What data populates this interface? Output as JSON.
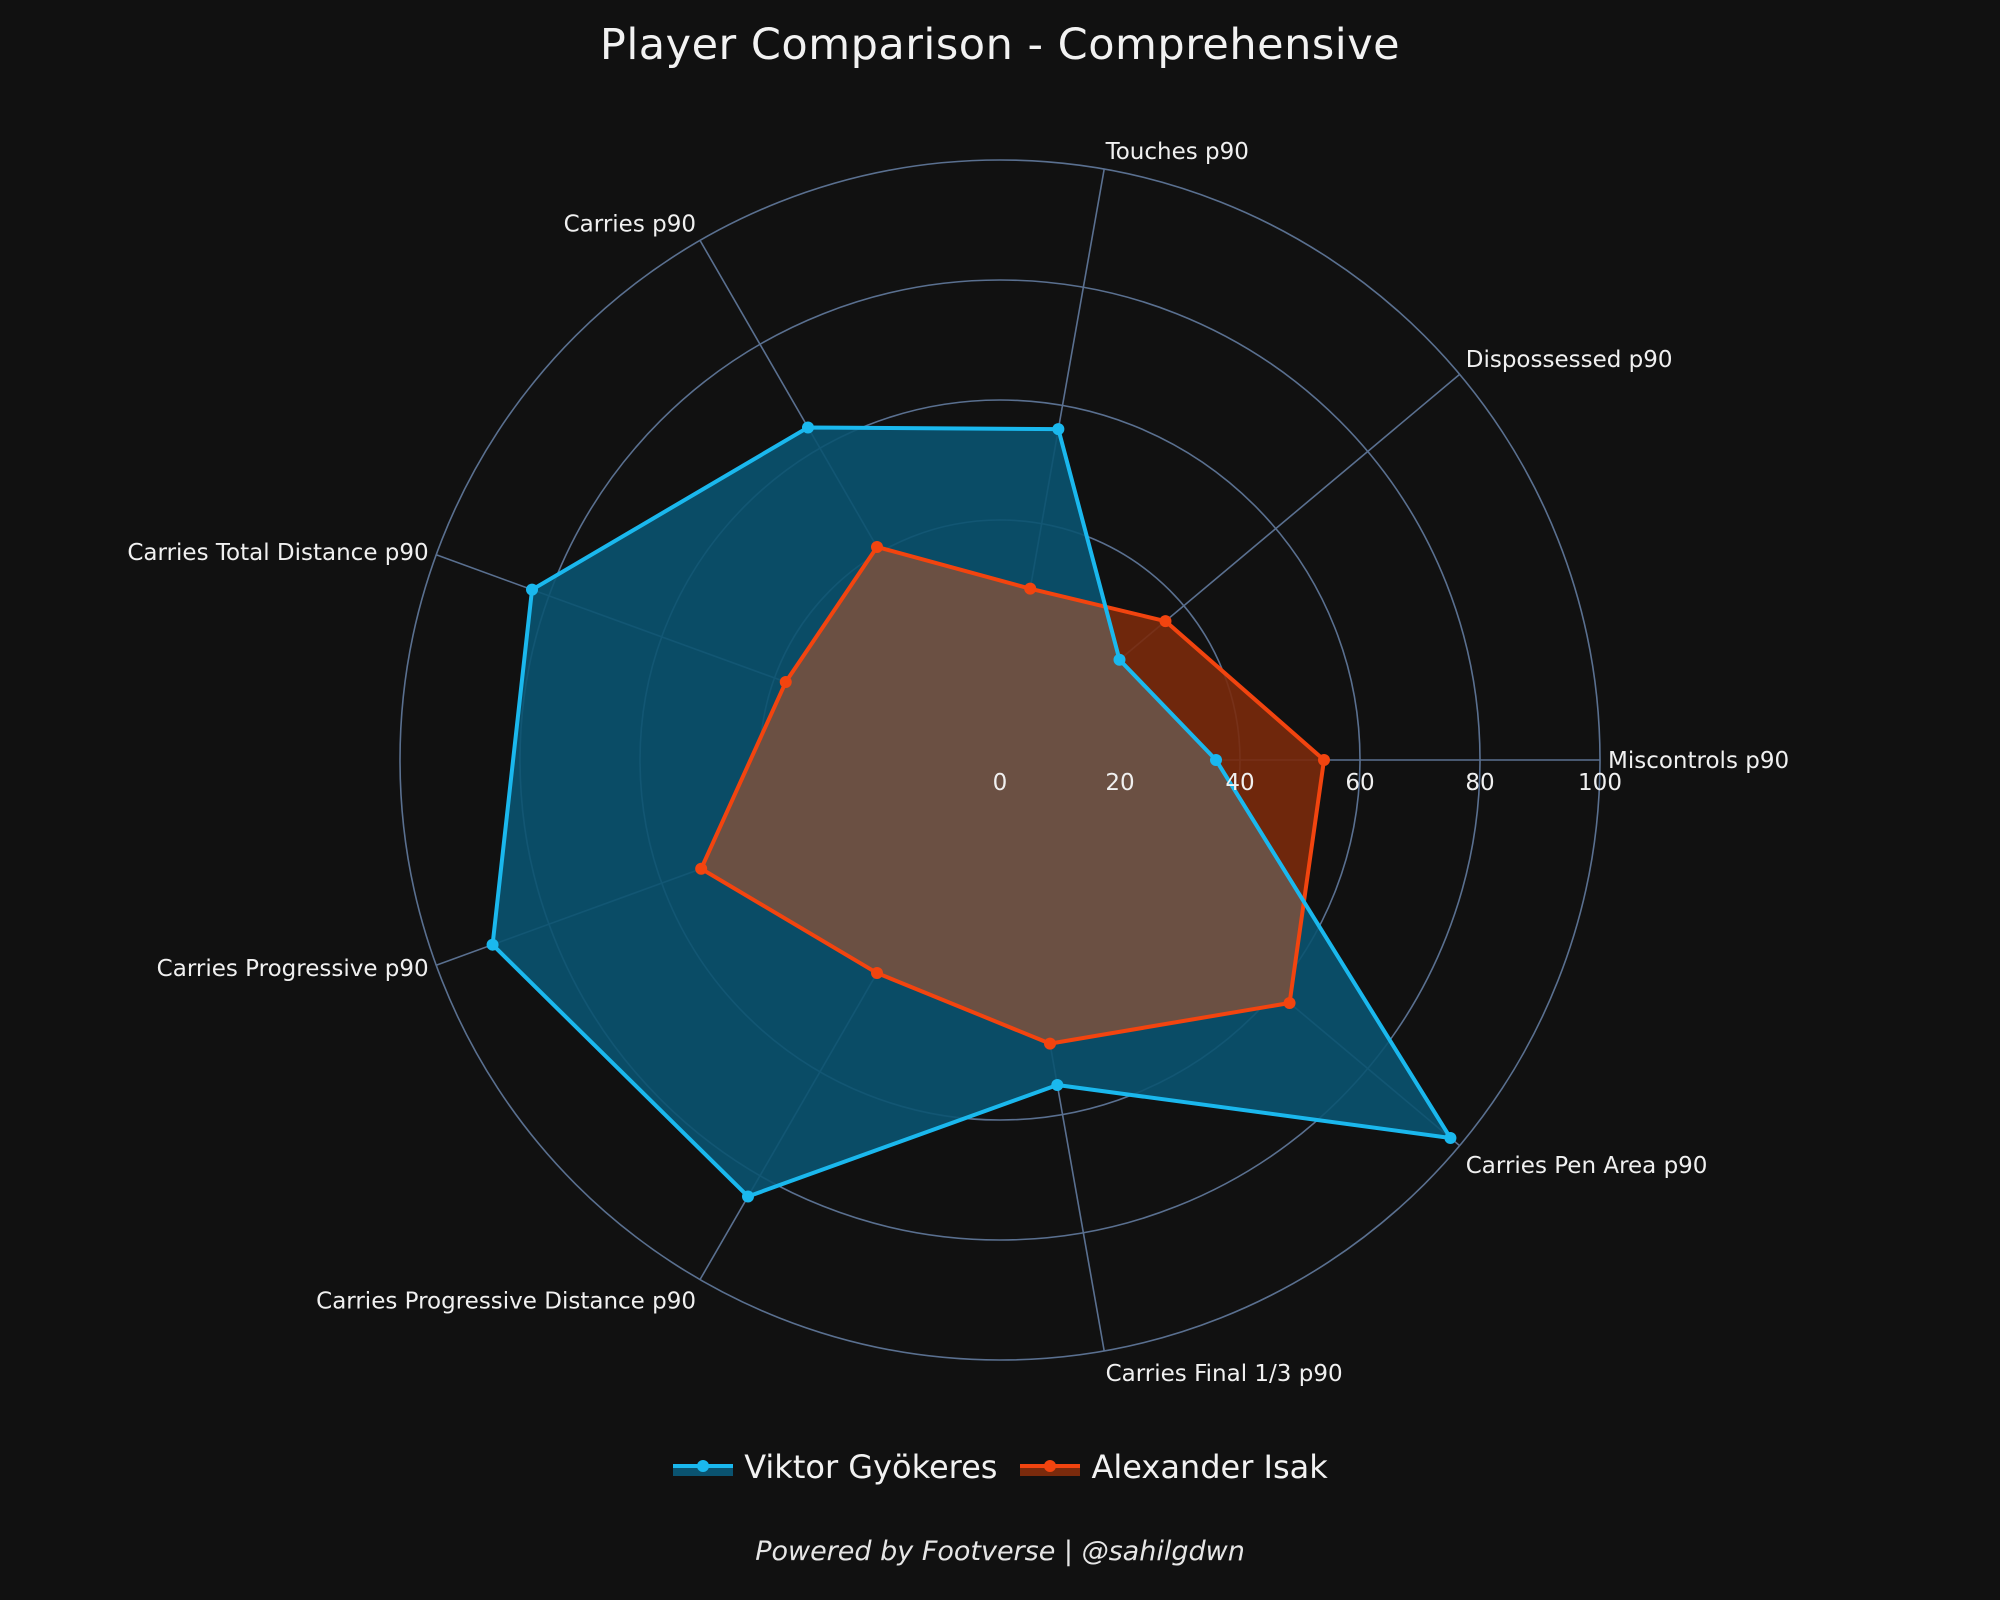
{
  "chart_data": {
    "type": "radar",
    "title": "Player Comparison - Comprehensive",
    "categories": [
      "Miscontrols p90",
      "Dispossessed p90",
      "Touches p90",
      "Carries p90",
      "Carries Total Distance p90",
      "Carries Progressive p90",
      "Carries Progressive Distance p90",
      "Carries Final 1/3 p90",
      "Carries Pen Area p90"
    ],
    "rlim": [
      0,
      100
    ],
    "rticks": [
      0,
      20,
      40,
      60,
      80,
      100
    ],
    "rtick_labels": [
      "0",
      "20",
      "40",
      "60",
      "80",
      "100"
    ],
    "grid": true,
    "legend_position": "bottom-center",
    "series": [
      {
        "name": "Viktor Gyökeres",
        "color": "#1ab8ee",
        "fill": "#0a5370",
        "values": [
          36,
          26,
          56,
          64,
          83,
          90,
          84,
          55,
          98
        ]
      },
      {
        "name": "Alexander Isak",
        "color": "#f2440f",
        "fill": "#7a2a0c",
        "values": [
          54,
          36,
          29,
          41,
          38,
          53,
          41,
          48,
          63
        ]
      }
    ]
  },
  "footer": "Powered by Footverse | @sahilgdwn",
  "colors": {
    "background": "#111111",
    "grid": "#5a7090",
    "text": "#f0f0f0",
    "overlap_fill": "#6b5043"
  }
}
